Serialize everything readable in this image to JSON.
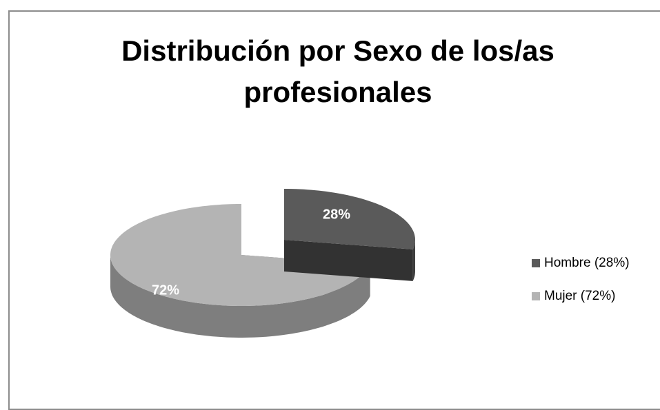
{
  "chart_data": {
    "type": "pie",
    "title": "Distribución por Sexo de los/as profesionales",
    "categories": [
      "Hombre (28%)",
      "Mujer (72%)"
    ],
    "values": [
      28,
      72
    ],
    "value_labels": [
      "28%",
      "72%"
    ],
    "colors": [
      "#5a5a5a",
      "#b4b4b4"
    ],
    "legend": "right",
    "three_d": true
  }
}
